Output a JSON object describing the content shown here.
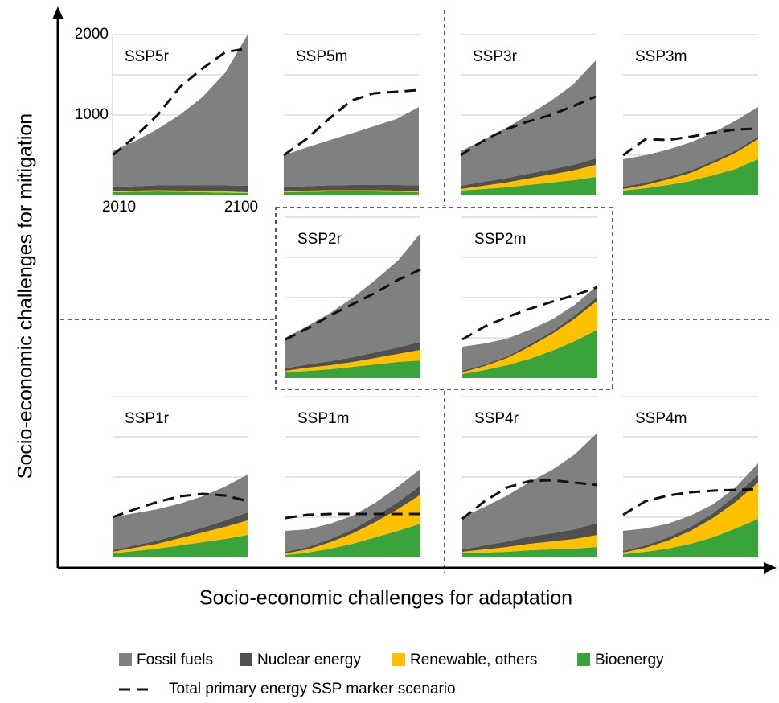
{
  "chart_data": {
    "type": "area",
    "y_axis_title": "Socio-economic challenges for mitigation",
    "x_axis_title": "Socio-economic challenges for adaptation",
    "x": [
      2010,
      2025,
      2040,
      2055,
      2070,
      2085,
      2100
    ],
    "xlim": [
      2010,
      2100
    ],
    "xticks": [
      2010,
      2100
    ],
    "ylim": [
      0,
      2000
    ],
    "yticks": [
      1000,
      2000
    ],
    "minor_yticks": [
      500,
      1500
    ],
    "grid": true,
    "series": [
      {
        "name": "Fossil fuels",
        "color": "#808080"
      },
      {
        "name": "Nuclear energy",
        "color": "#505050"
      },
      {
        "name": "Renewable, others",
        "color": "#ffc000"
      },
      {
        "name": "Bioenergy",
        "color": "#3ba33b"
      }
    ],
    "total_line": {
      "name": "Total primary energy SSP marker scenario",
      "color": "#111111"
    },
    "panels": [
      {
        "title": "SSP5r",
        "values": [
          [
            450,
            560,
            700,
            880,
            1100,
            1400,
            1880
          ],
          [
            50,
            55,
            60,
            65,
            70,
            75,
            80
          ],
          [
            10,
            15,
            15,
            15,
            15,
            15,
            10
          ],
          [
            40,
            45,
            50,
            45,
            40,
            35,
            30
          ]
        ],
        "total": [
          500,
          730,
          1000,
          1350,
          1580,
          1780,
          1830
        ]
      },
      {
        "title": "SSP5m",
        "values": [
          [
            400,
            480,
            560,
            640,
            730,
            820,
            975
          ],
          [
            50,
            55,
            60,
            65,
            65,
            70,
            70
          ],
          [
            10,
            15,
            15,
            15,
            15,
            15,
            15
          ],
          [
            40,
            45,
            50,
            50,
            50,
            45,
            40
          ]
        ],
        "total": [
          500,
          700,
          950,
          1180,
          1270,
          1290,
          1310
        ]
      },
      {
        "title": "SSP3r",
        "values": [
          [
            430,
            520,
            620,
            730,
            850,
            1000,
            1220
          ],
          [
            40,
            50,
            55,
            60,
            65,
            70,
            80
          ],
          [
            20,
            40,
            60,
            80,
            100,
            120,
            150
          ],
          [
            60,
            80,
            100,
            130,
            160,
            190,
            230
          ]
        ],
        "total": [
          500,
          680,
          820,
          920,
          1000,
          1110,
          1230
        ]
      },
      {
        "title": "SSP3m",
        "values": [
          [
            340,
            340,
            340,
            350,
            350,
            370,
            370
          ],
          [
            30,
            30,
            30,
            30,
            30,
            30,
            30
          ],
          [
            20,
            40,
            70,
            100,
            150,
            200,
            250
          ],
          [
            60,
            90,
            130,
            180,
            250,
            330,
            450
          ]
        ],
        "total": [
          500,
          700,
          690,
          730,
          780,
          820,
          830
        ]
      },
      {
        "title": "SSP2r",
        "values": [
          [
            380,
            480,
            600,
            740,
            900,
            1080,
            1350
          ],
          [
            30,
            40,
            50,
            60,
            70,
            80,
            100
          ],
          [
            20,
            40,
            50,
            60,
            80,
            100,
            130
          ],
          [
            70,
            90,
            110,
            140,
            170,
            200,
            220
          ]
        ],
        "total": [
          480,
          620,
          780,
          920,
          1060,
          1220,
          1350
        ]
      },
      {
        "title": "SSP2m",
        "values": [
          [
            300,
            260,
            220,
            180,
            150,
            130,
            140
          ],
          [
            20,
            20,
            20,
            30,
            30,
            40,
            50
          ],
          [
            20,
            50,
            90,
            150,
            210,
            280,
            360
          ],
          [
            50,
            100,
            160,
            240,
            340,
            460,
            600
          ]
        ],
        "total": [
          480,
          640,
          760,
          860,
          950,
          1030,
          1130
        ]
      },
      {
        "title": "SSP1r",
        "values": [
          [
            410,
            400,
            390,
            380,
            390,
            420,
            470
          ],
          [
            20,
            30,
            40,
            50,
            60,
            80,
            100
          ],
          [
            20,
            40,
            60,
            90,
            120,
            150,
            180
          ],
          [
            50,
            80,
            110,
            150,
            190,
            230,
            280
          ]
        ],
        "total": [
          500,
          600,
          690,
          760,
          790,
          770,
          700
        ]
      },
      {
        "title": "SSP1m",
        "values": [
          [
            260,
            220,
            190,
            170,
            170,
            190,
            210
          ],
          [
            20,
            30,
            40,
            50,
            70,
            90,
            110
          ],
          [
            20,
            40,
            80,
            130,
            190,
            270,
            360
          ],
          [
            30,
            60,
            110,
            170,
            250,
            330,
            420
          ]
        ],
        "total": [
          490,
          530,
          540,
          540,
          540,
          540,
          540
        ]
      },
      {
        "title": "SSP4r",
        "values": [
          [
            400,
            480,
            570,
            680,
            790,
            930,
            1120
          ],
          [
            30,
            50,
            70,
            90,
            100,
            120,
            150
          ],
          [
            20,
            40,
            60,
            80,
            100,
            120,
            150
          ],
          [
            50,
            60,
            70,
            90,
            100,
            110,
            130
          ]
        ],
        "total": [
          480,
          700,
          870,
          950,
          960,
          930,
          900
        ]
      },
      {
        "title": "SSP4m",
        "values": [
          [
            250,
            210,
            170,
            140,
            110,
            100,
            140
          ],
          [
            20,
            30,
            40,
            50,
            60,
            80,
            100
          ],
          [
            20,
            50,
            100,
            160,
            240,
            330,
            450
          ],
          [
            40,
            70,
            110,
            170,
            250,
            360,
            480
          ]
        ],
        "total": [
          530,
          700,
          770,
          810,
          830,
          840,
          850
        ]
      }
    ]
  }
}
